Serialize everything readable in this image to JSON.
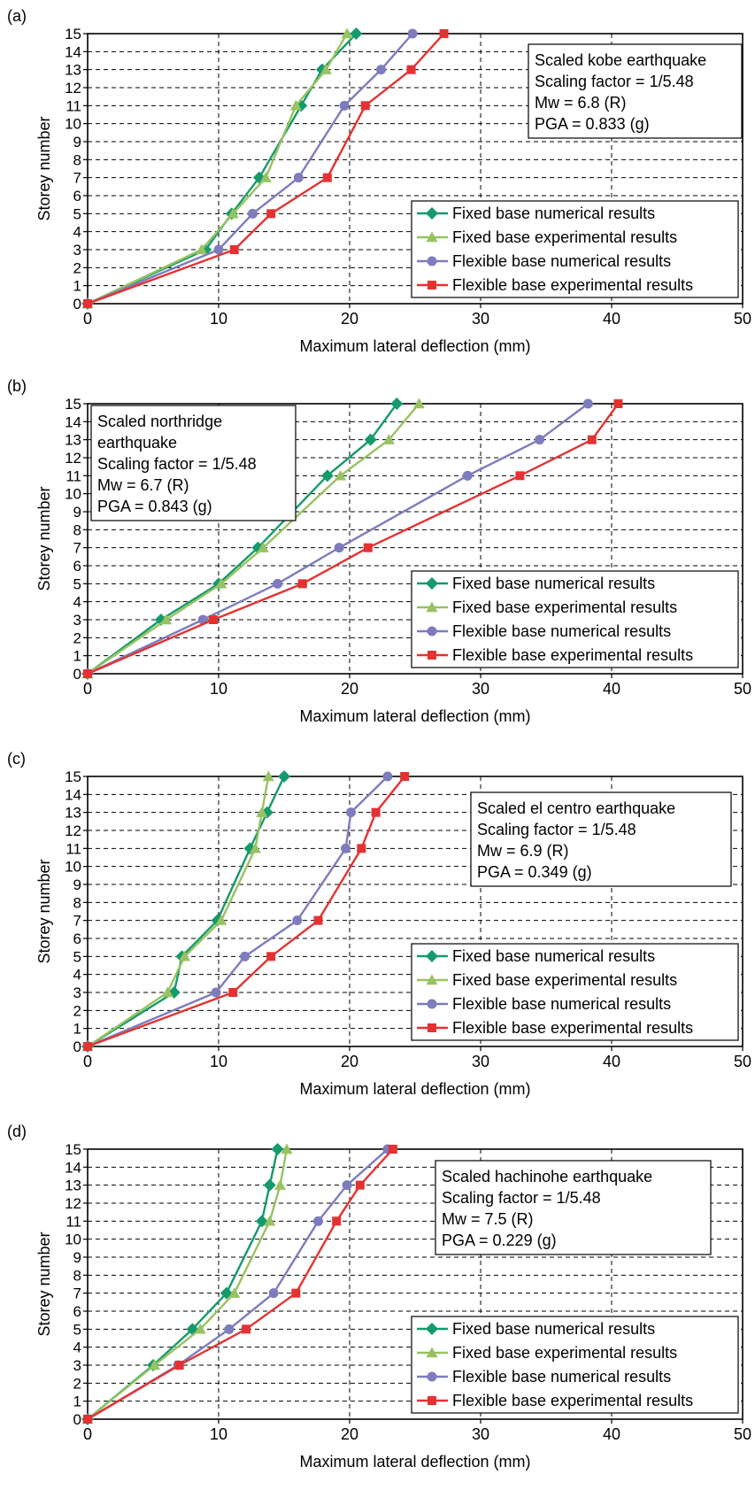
{
  "series_colors": {
    "fixed_num": "#159a6b",
    "fixed_exp": "#98c262",
    "flex_num": "#7d7cbd",
    "flex_exp": "#e43232"
  },
  "chart_data": [
    {
      "type": "line",
      "panel_label": "(a)",
      "xlabel": "Maximum lateral deflection (mm)",
      "ylabel": "Storey number",
      "xlim": [
        0,
        50
      ],
      "ylim": [
        0,
        15
      ],
      "x_ticks": [
        "0",
        "10",
        "20",
        "30",
        "40",
        "50"
      ],
      "y_ticks": [
        "0",
        "1",
        "2",
        "3",
        "4",
        "5",
        "6",
        "7",
        "8",
        "9",
        "10",
        "11",
        "12",
        "13",
        "14",
        "15"
      ],
      "grid": true,
      "legend_position": "bottom-right",
      "info_position": "top-right",
      "info_lines": [
        "Scaled kobe earthquake",
        "Scaling factor = 1/5.48",
        "Mw = 6.8 (R)",
        "PGA = 0.833 (g)"
      ],
      "series": [
        {
          "name": "Fixed base numerical results",
          "marker": "diamond",
          "color_key": "fixed_num",
          "points": [
            [
              0,
              0
            ],
            [
              9,
              3
            ],
            [
              11,
              5
            ],
            [
              13.1,
              7
            ],
            [
              16.3,
              11
            ],
            [
              17.9,
              13
            ],
            [
              20.5,
              15
            ]
          ]
        },
        {
          "name": "Fixed base experimental results",
          "marker": "triangle",
          "color_key": "fixed_exp",
          "points": [
            [
              0,
              0
            ],
            [
              8.7,
              3
            ],
            [
              11.1,
              5
            ],
            [
              13.6,
              7
            ],
            [
              15.9,
              11
            ],
            [
              18.2,
              13
            ],
            [
              19.8,
              15
            ]
          ]
        },
        {
          "name": "Flexible base numerical results",
          "marker": "circle",
          "color_key": "flex_num",
          "points": [
            [
              0,
              0
            ],
            [
              10,
              3
            ],
            [
              12.6,
              5
            ],
            [
              16.1,
              7
            ],
            [
              19.6,
              11
            ],
            [
              22.4,
              13
            ],
            [
              24.8,
              15
            ]
          ]
        },
        {
          "name": "Flexible base experimental results",
          "marker": "square",
          "color_key": "flex_exp",
          "points": [
            [
              0,
              0
            ],
            [
              11.2,
              3
            ],
            [
              14,
              5
            ],
            [
              18.3,
              7
            ],
            [
              21.2,
              11
            ],
            [
              24.7,
              13
            ],
            [
              27.2,
              15
            ]
          ]
        }
      ]
    },
    {
      "type": "line",
      "panel_label": "(b)",
      "xlabel": "Maximum lateral deflection (mm)",
      "ylabel": "Storey number",
      "xlim": [
        0,
        50
      ],
      "ylim": [
        0,
        15
      ],
      "x_ticks": [
        "0",
        "10",
        "20",
        "30",
        "40",
        "50"
      ],
      "y_ticks": [
        "0",
        "1",
        "2",
        "3",
        "4",
        "5",
        "6",
        "7",
        "8",
        "9",
        "10",
        "11",
        "12",
        "13",
        "14",
        "15"
      ],
      "grid": true,
      "legend_position": "bottom-right",
      "info_position": "top-left",
      "info_lines": [
        "Scaled northridge",
        "earthquake",
        "Scaling factor = 1/5.48",
        "Mw = 6.7 (R)",
        "PGA = 0.843 (g)"
      ],
      "series": [
        {
          "name": "Fixed base numerical results",
          "marker": "diamond",
          "color_key": "fixed_num",
          "points": [
            [
              0,
              0
            ],
            [
              5.6,
              3
            ],
            [
              10,
              5
            ],
            [
              13,
              7
            ],
            [
              18.3,
              11
            ],
            [
              21.6,
              13
            ],
            [
              23.6,
              15
            ]
          ]
        },
        {
          "name": "Fixed base experimental results",
          "marker": "triangle",
          "color_key": "fixed_exp",
          "points": [
            [
              0,
              0
            ],
            [
              6,
              3
            ],
            [
              10.2,
              5
            ],
            [
              13.4,
              7
            ],
            [
              19.3,
              11
            ],
            [
              23,
              13
            ],
            [
              25.3,
              15
            ]
          ]
        },
        {
          "name": "Flexible base numerical results",
          "marker": "circle",
          "color_key": "flex_num",
          "points": [
            [
              0,
              0
            ],
            [
              8.8,
              3
            ],
            [
              14.5,
              5
            ],
            [
              19.2,
              7
            ],
            [
              29,
              11
            ],
            [
              34.5,
              13
            ],
            [
              38.2,
              15
            ]
          ]
        },
        {
          "name": "Flexible base experimental results",
          "marker": "square",
          "color_key": "flex_exp",
          "points": [
            [
              0,
              0
            ],
            [
              9.6,
              3
            ],
            [
              16.4,
              5
            ],
            [
              21.4,
              7
            ],
            [
              33,
              11
            ],
            [
              38.5,
              13
            ],
            [
              40.5,
              15
            ]
          ]
        }
      ]
    },
    {
      "type": "line",
      "panel_label": "(c)",
      "xlabel": "Maximum lateral deflection (mm)",
      "ylabel": "Storey number",
      "xlim": [
        0,
        50
      ],
      "ylim": [
        0,
        15
      ],
      "x_ticks": [
        "0",
        "10",
        "20",
        "30",
        "40",
        "50"
      ],
      "y_ticks": [
        "0",
        "1",
        "2",
        "3",
        "4",
        "5",
        "6",
        "7",
        "8",
        "9",
        "10",
        "11",
        "12",
        "13",
        "14",
        "15"
      ],
      "grid": true,
      "legend_position": "bottom-right",
      "info_position": "top-right",
      "info_lines": [
        "Scaled el centro earthquake",
        "Scaling factor = 1/5.48",
        "Mw = 6.9 (R)",
        "PGA = 0.349 (g)"
      ],
      "series": [
        {
          "name": "Fixed base numerical results",
          "marker": "diamond",
          "color_key": "fixed_num",
          "points": [
            [
              0,
              0
            ],
            [
              6.6,
              3
            ],
            [
              7.2,
              5
            ],
            [
              9.9,
              7
            ],
            [
              12.4,
              11
            ],
            [
              13.7,
              13
            ],
            [
              15,
              15
            ]
          ]
        },
        {
          "name": "Fixed base experimental results",
          "marker": "triangle",
          "color_key": "fixed_exp",
          "points": [
            [
              0,
              0
            ],
            [
              6.1,
              3
            ],
            [
              7.4,
              5
            ],
            [
              10.2,
              7
            ],
            [
              12.8,
              11
            ],
            [
              13.3,
              13
            ],
            [
              13.8,
              15
            ]
          ]
        },
        {
          "name": "Flexible base numerical results",
          "marker": "circle",
          "color_key": "flex_num",
          "points": [
            [
              0,
              0
            ],
            [
              9.8,
              3
            ],
            [
              12,
              5
            ],
            [
              16,
              7
            ],
            [
              19.7,
              11
            ],
            [
              20.1,
              13
            ],
            [
              22.9,
              15
            ]
          ]
        },
        {
          "name": "Flexible base experimental results",
          "marker": "square",
          "color_key": "flex_exp",
          "points": [
            [
              0,
              0
            ],
            [
              11.1,
              3
            ],
            [
              14,
              5
            ],
            [
              17.6,
              7
            ],
            [
              20.9,
              11
            ],
            [
              22,
              13
            ],
            [
              24.2,
              15
            ]
          ]
        }
      ]
    },
    {
      "type": "line",
      "panel_label": "(d)",
      "xlabel": "Maximum lateral deflection (mm)",
      "ylabel": "Storey number",
      "xlim": [
        0,
        50
      ],
      "ylim": [
        0,
        15
      ],
      "x_ticks": [
        "0",
        "10",
        "20",
        "30",
        "40",
        "50"
      ],
      "y_ticks": [
        "0",
        "1",
        "2",
        "3",
        "4",
        "5",
        "6",
        "7",
        "8",
        "9",
        "10",
        "11",
        "12",
        "13",
        "14",
        "15"
      ],
      "grid": true,
      "legend_position": "bottom-right",
      "info_position": "top-right",
      "info_lines": [
        "Scaled hachinohe earthquake",
        "Scaling factor = 1/5.48",
        "Mw = 7.5 (R)",
        "PGA = 0.229 (g)"
      ],
      "series": [
        {
          "name": "Fixed base numerical results",
          "marker": "diamond",
          "color_key": "fixed_num",
          "points": [
            [
              0,
              0
            ],
            [
              5,
              3
            ],
            [
              8,
              5
            ],
            [
              10.6,
              7
            ],
            [
              13.3,
              11
            ],
            [
              13.9,
              13
            ],
            [
              14.5,
              15
            ]
          ]
        },
        {
          "name": "Fixed base experimental results",
          "marker": "triangle",
          "color_key": "fixed_exp",
          "points": [
            [
              0,
              0
            ],
            [
              5.1,
              3
            ],
            [
              8.6,
              5
            ],
            [
              11.2,
              7
            ],
            [
              13.9,
              11
            ],
            [
              14.7,
              13
            ],
            [
              15.2,
              15
            ]
          ]
        },
        {
          "name": "Flexible base numerical results",
          "marker": "circle",
          "color_key": "flex_num",
          "points": [
            [
              0,
              0
            ],
            [
              6.9,
              3
            ],
            [
              10.8,
              5
            ],
            [
              14.2,
              7
            ],
            [
              17.6,
              11
            ],
            [
              19.8,
              13
            ],
            [
              22.9,
              15
            ]
          ]
        },
        {
          "name": "Flexible base experimental results",
          "marker": "square",
          "color_key": "flex_exp",
          "points": [
            [
              0,
              0
            ],
            [
              7,
              3
            ],
            [
              12.1,
              5
            ],
            [
              15.9,
              7
            ],
            [
              19,
              11
            ],
            [
              20.8,
              13
            ],
            [
              23.3,
              15
            ]
          ]
        }
      ]
    }
  ]
}
